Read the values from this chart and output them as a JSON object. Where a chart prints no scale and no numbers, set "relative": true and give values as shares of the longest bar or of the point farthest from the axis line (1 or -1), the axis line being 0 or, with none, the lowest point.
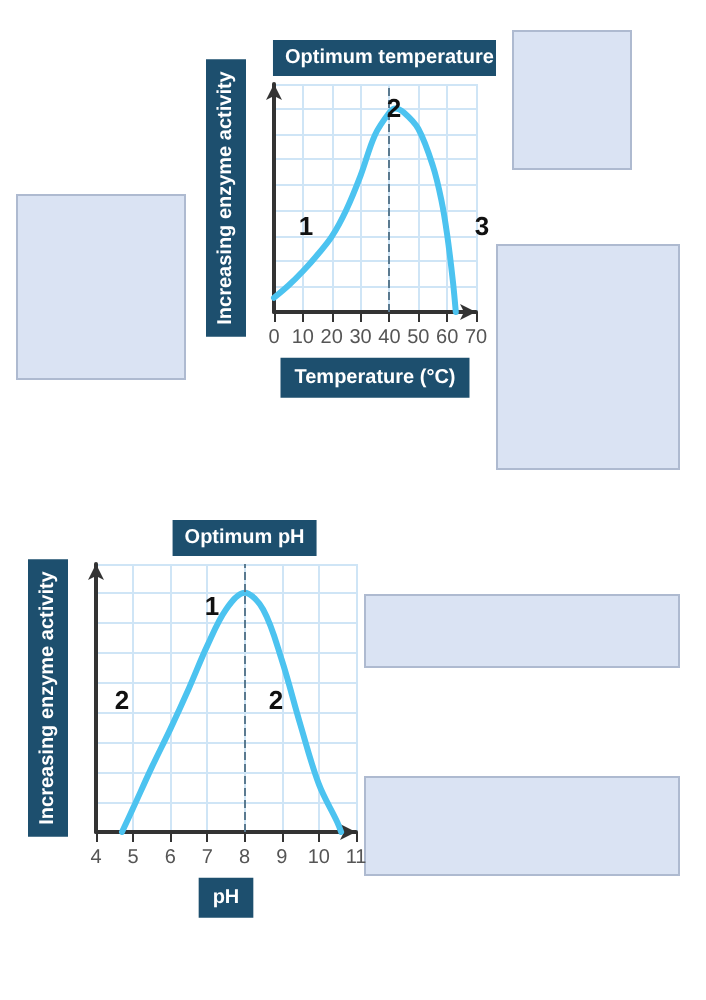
{
  "chart_data": [
    {
      "type": "line",
      "relative": true,
      "xlabel": "Temperature (°C)",
      "ylabel": "Increasing enzyme activity",
      "x": [
        0,
        5,
        10,
        15,
        20,
        25,
        30,
        35,
        40,
        42,
        45,
        50,
        55,
        58,
        60,
        62,
        63
      ],
      "series": [
        {
          "color": "#4cc3f0",
          "values": [
            0.07,
            0.13,
            0.2,
            0.28,
            0.37,
            0.5,
            0.67,
            0.87,
            0.98,
            1,
            0.98,
            0.9,
            0.72,
            0.55,
            0.38,
            0.15,
            0
          ]
        }
      ],
      "xlim": [
        0,
        70
      ],
      "xticks": [
        0,
        10,
        20,
        30,
        40,
        50,
        60,
        70
      ],
      "grid": true,
      "marker": "none",
      "line_style": "solid",
      "ref_lines": [
        {
          "axis": "x",
          "value": 40,
          "label": "Optimum temperature",
          "line_style": "dashed"
        }
      ],
      "annotations": [
        "1",
        "2",
        "3"
      ]
    },
    {
      "type": "line",
      "relative": true,
      "xlabel": "pH",
      "ylabel": "Increasing enzyme activity",
      "x": [
        4.7,
        5,
        5.5,
        6,
        6.5,
        7,
        7.5,
        8,
        8.5,
        9,
        9.5,
        10,
        10.5,
        10.6
      ],
      "series": [
        {
          "color": "#4cc3f0",
          "values": [
            0,
            0.1,
            0.27,
            0.43,
            0.6,
            0.78,
            0.93,
            1,
            0.93,
            0.72,
            0.45,
            0.2,
            0.04,
            0
          ]
        }
      ],
      "xlim": [
        4,
        11
      ],
      "xticks": [
        4,
        5,
        6,
        7,
        8,
        9,
        10,
        11
      ],
      "grid": true,
      "marker": "none",
      "line_style": "solid",
      "ref_lines": [
        {
          "axis": "x",
          "value": 8,
          "label": "Optimum pH",
          "line_style": "dashed"
        }
      ],
      "annotations": [
        "1",
        "2",
        "2"
      ]
    }
  ]
}
